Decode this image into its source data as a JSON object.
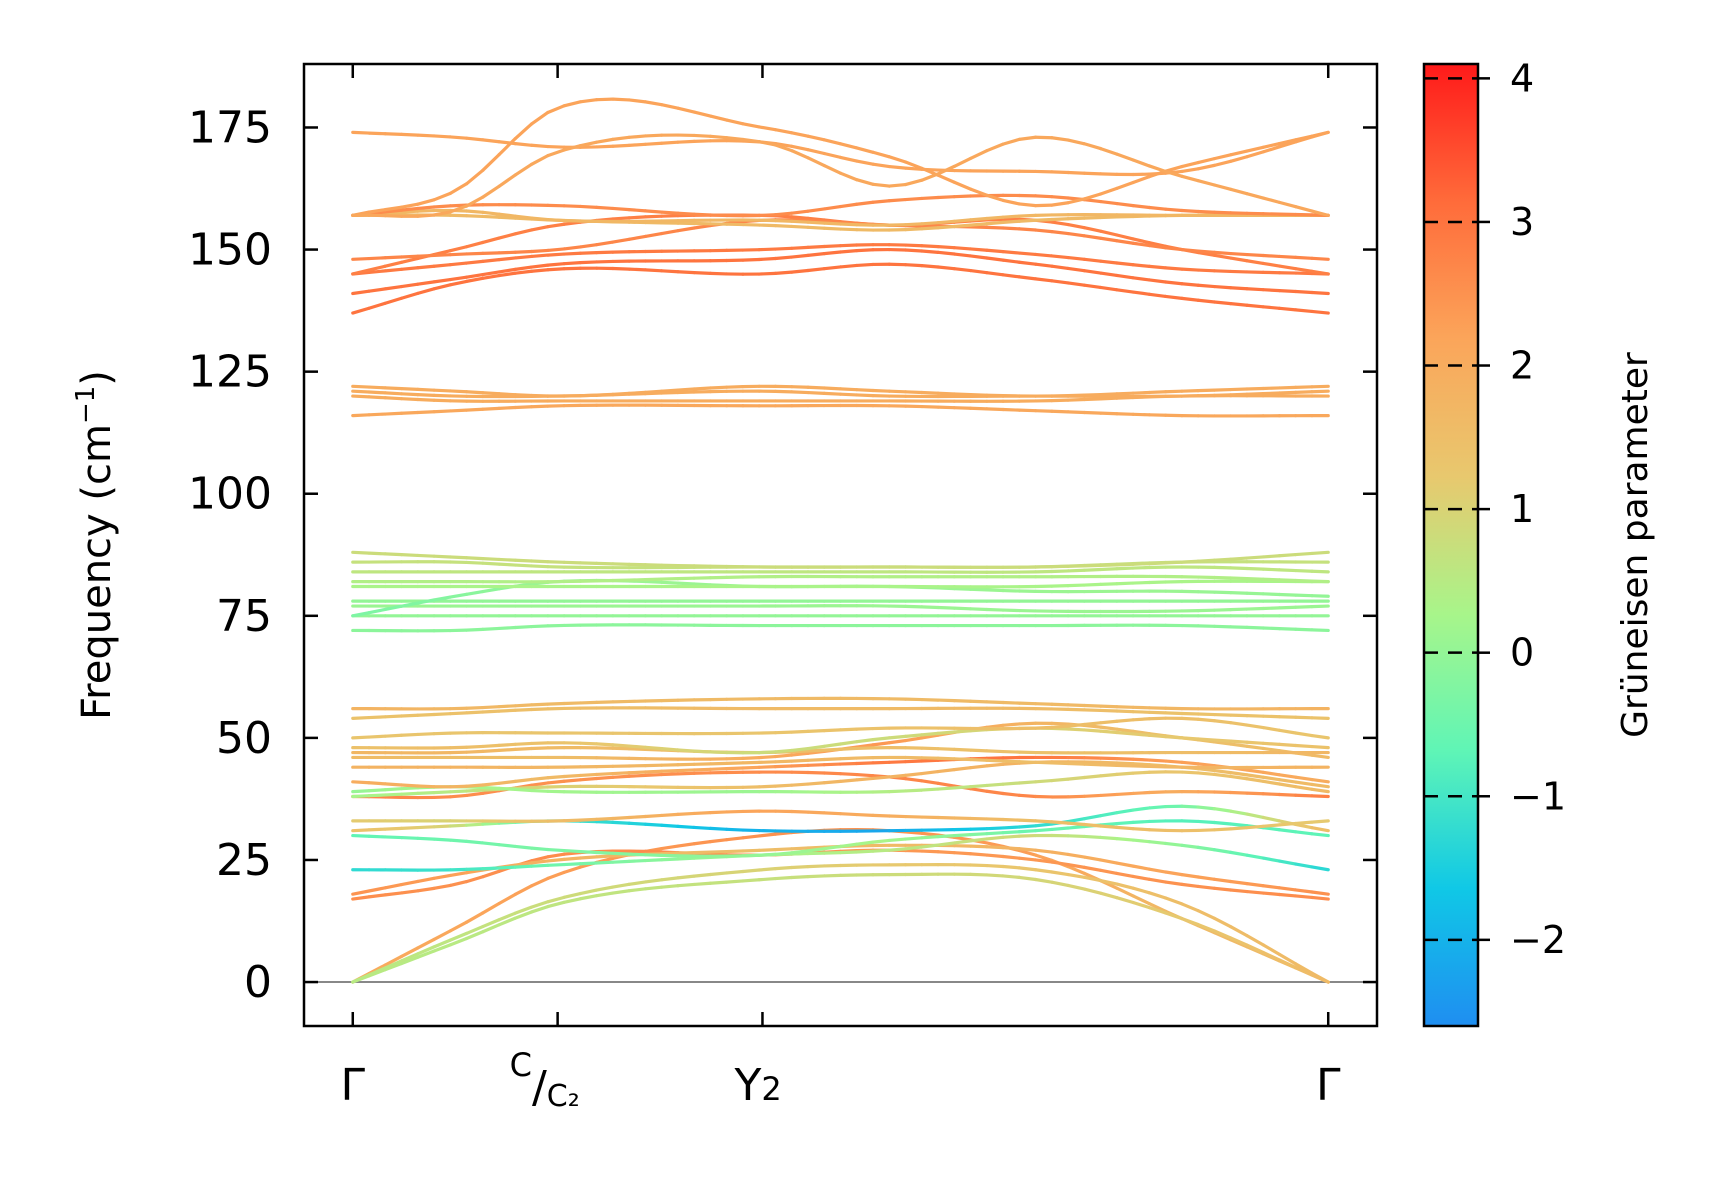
{
  "chart_data": {
    "type": "line",
    "title": "",
    "ylabel": "Frequency (cm",
    "ylabel_sup": "−1",
    "ylabel_close": ")",
    "ylim": [
      -9,
      188
    ],
    "yticks": [
      0,
      25,
      50,
      75,
      100,
      125,
      150,
      175
    ],
    "ytick_labels": [
      "0",
      "25",
      "50",
      "75",
      "100",
      "125",
      "150",
      "175"
    ],
    "x_range": [
      -0.1,
      2.1
    ],
    "kpoints": [
      {
        "x": 0.0,
        "main": "Γ",
        "sup": "",
        "slash": "",
        "sub": ""
      },
      {
        "x": 0.42,
        "main": "",
        "sup": "C",
        "slash": "/",
        "sub": "C₂"
      },
      {
        "x": 0.84,
        "main": "Y",
        "sup": "",
        "slash": "",
        "sub": "2"
      },
      {
        "x": 2.0,
        "main": "Γ",
        "sup": "",
        "slash": "",
        "sub": ""
      }
    ],
    "colorbar": {
      "label": "Grüneisen parameter",
      "range": [
        -2.6,
        4.1
      ],
      "ticks": [
        -2,
        -1,
        0,
        1,
        2,
        3,
        4
      ],
      "tick_labels": [
        "−2",
        "−1",
        "0",
        "1",
        "2",
        "3",
        "4"
      ],
      "colors": [
        "#1f8ef1",
        "#10c8e6",
        "#5ff5b6",
        "#a8f58a",
        "#e8c86e",
        "#fba55a",
        "#ff6b3a",
        "#ff1a1a"
      ]
    },
    "x_samples": [
      0.0,
      0.21,
      0.42,
      0.84,
      1.1,
      1.4,
      1.7,
      2.0
    ],
    "bands": [
      {
        "y": [
          0,
          11,
          22,
          30,
          31,
          26,
          13,
          0
        ],
        "g": [
          2.0,
          2.1,
          2.3,
          2.5,
          2.5,
          2.3,
          1.6,
          1.6
        ]
      },
      {
        "y": [
          0,
          8,
          16,
          21,
          22,
          21,
          13,
          0
        ],
        "g": [
          0.5,
          0.5,
          0.6,
          0.7,
          0.8,
          0.9,
          1.2,
          1.6
        ]
      },
      {
        "y": [
          0,
          9,
          17,
          23,
          24,
          23,
          16,
          0
        ],
        "g": [
          0.5,
          0.6,
          0.8,
          1.0,
          1.2,
          1.3,
          1.5,
          1.6
        ]
      },
      {
        "y": [
          17,
          20,
          26,
          26,
          27,
          25,
          20,
          17
        ],
        "g": [
          2.6,
          2.5,
          2.6,
          2.6,
          2.4,
          2.4,
          2.5,
          2.6
        ]
      },
      {
        "y": [
          18,
          22,
          25,
          27,
          28,
          27,
          22,
          18
        ],
        "g": [
          2.5,
          2.3,
          1.8,
          1.5,
          1.6,
          1.8,
          2.2,
          2.5
        ]
      },
      {
        "y": [
          23,
          23,
          24,
          26,
          27,
          30,
          28,
          23
        ],
        "g": [
          -1.3,
          -1.1,
          -0.5,
          0.2,
          0.5,
          0.9,
          0.0,
          -1.3
        ]
      },
      {
        "y": [
          30,
          29,
          27,
          26,
          29,
          31,
          33,
          30
        ],
        "g": [
          -0.7,
          -0.5,
          -0.3,
          0.0,
          0.3,
          -0.5,
          -0.8,
          -0.7
        ]
      },
      {
        "y": [
          31,
          32,
          33,
          31,
          31,
          32,
          36,
          31
        ],
        "g": [
          1.5,
          1.0,
          -1.0,
          -2.0,
          -2.2,
          -1.3,
          -0.5,
          1.5
        ]
      },
      {
        "y": [
          33,
          33,
          33,
          35,
          34,
          33,
          31,
          33
        ],
        "g": [
          1.2,
          1.0,
          1.5,
          2.2,
          2.0,
          1.5,
          1.5,
          1.2
        ]
      },
      {
        "y": [
          38,
          38,
          41,
          43,
          42,
          38,
          39,
          38
        ],
        "g": [
          2.8,
          2.6,
          2.5,
          2.6,
          2.7,
          2.7,
          2.0,
          2.8
        ]
      },
      {
        "y": [
          38,
          39,
          40,
          40,
          42,
          45,
          44,
          40
        ],
        "g": [
          0.2,
          0.5,
          1.0,
          1.5,
          1.8,
          1.8,
          1.5,
          1.6
        ]
      },
      {
        "y": [
          39,
          40,
          39,
          39,
          39,
          41,
          43,
          39
        ],
        "g": [
          0.0,
          0.3,
          0.2,
          0.1,
          0.4,
          0.8,
          1.3,
          1.6
        ]
      },
      {
        "y": [
          41,
          40,
          42,
          44,
          45,
          46,
          45,
          41
        ],
        "g": [
          2.0,
          1.8,
          1.6,
          2.2,
          2.9,
          3.0,
          2.3,
          2.0
        ]
      },
      {
        "y": [
          44,
          44,
          44,
          45,
          46,
          45,
          44,
          44
        ],
        "g": [
          1.8,
          1.8,
          1.7,
          1.7,
          1.6,
          1.5,
          1.7,
          1.8
        ]
      },
      {
        "y": [
          46,
          46,
          46,
          46,
          49,
          53,
          50,
          46
        ],
        "g": [
          1.6,
          1.5,
          1.5,
          2.0,
          2.4,
          1.8,
          1.4,
          1.6
        ]
      },
      {
        "y": [
          47,
          47,
          48,
          47,
          48,
          47,
          47,
          47
        ],
        "g": [
          1.7,
          1.7,
          1.6,
          1.5,
          1.5,
          1.4,
          1.5,
          1.7
        ]
      },
      {
        "y": [
          48,
          48,
          49,
          47,
          50,
          52,
          50,
          48
        ],
        "g": [
          1.4,
          1.5,
          1.4,
          0.8,
          0.8,
          1.0,
          1.2,
          1.4
        ]
      },
      {
        "y": [
          50,
          51,
          51,
          51,
          52,
          52,
          54,
          50
        ],
        "g": [
          1.3,
          1.3,
          1.3,
          1.3,
          1.4,
          1.5,
          1.5,
          1.3
        ]
      },
      {
        "y": [
          54,
          55,
          56,
          56,
          56,
          56,
          55,
          54
        ],
        "g": [
          1.4,
          1.4,
          1.5,
          1.6,
          1.6,
          1.6,
          1.4,
          1.4
        ]
      },
      {
        "y": [
          56,
          56,
          57,
          58,
          58,
          57,
          56,
          56
        ],
        "g": [
          1.8,
          1.7,
          1.6,
          1.6,
          1.6,
          1.6,
          1.7,
          1.8
        ]
      },
      {
        "y": [
          72,
          72,
          73,
          73,
          73,
          73,
          73,
          72
        ],
        "g": [
          -0.1,
          -0.1,
          -0.1,
          -0.1,
          -0.1,
          -0.1,
          -0.1,
          -0.1
        ]
      },
      {
        "y": [
          75,
          75,
          75,
          75,
          75,
          75,
          75,
          75
        ],
        "g": [
          0.0,
          0.0,
          0.0,
          0.0,
          0.0,
          0.0,
          0.0,
          0.0
        ]
      },
      {
        "y": [
          77,
          77,
          77,
          77,
          77,
          76,
          76,
          77
        ],
        "g": [
          0.1,
          0.1,
          0.1,
          0.1,
          0.1,
          0.1,
          0.1,
          0.1
        ]
      },
      {
        "y": [
          78,
          78,
          78,
          78,
          78,
          78,
          78,
          78
        ],
        "g": [
          0.0,
          0.0,
          0.0,
          0.0,
          0.0,
          0.0,
          0.0,
          0.0
        ]
      },
      {
        "y": [
          75,
          79,
          82,
          81,
          81,
          80,
          80,
          79
        ],
        "g": [
          -0.3,
          -0.2,
          0.1,
          0.1,
          0.1,
          0.1,
          0.1,
          0.0
        ]
      },
      {
        "y": [
          81,
          81,
          81,
          81,
          81,
          81,
          82,
          82
        ],
        "g": [
          0.3,
          0.3,
          0.3,
          0.3,
          0.3,
          0.3,
          0.3,
          0.3
        ]
      },
      {
        "y": [
          82,
          82,
          82,
          83,
          83,
          83,
          83,
          82
        ],
        "g": [
          0.4,
          0.4,
          0.4,
          0.4,
          0.4,
          0.4,
          0.4,
          0.4
        ]
      },
      {
        "y": [
          84,
          84,
          84,
          84,
          84,
          84,
          85,
          84
        ],
        "g": [
          0.6,
          0.6,
          0.6,
          0.6,
          0.6,
          0.6,
          0.6,
          0.6
        ]
      },
      {
        "y": [
          86,
          86,
          85,
          85,
          85,
          85,
          86,
          86
        ],
        "g": [
          0.7,
          0.7,
          0.7,
          0.7,
          0.7,
          0.7,
          0.7,
          0.7
        ]
      },
      {
        "y": [
          88,
          87,
          86,
          85,
          85,
          85,
          86,
          88
        ],
        "g": [
          0.8,
          0.8,
          0.8,
          0.8,
          0.8,
          0.8,
          0.8,
          0.8
        ]
      },
      {
        "y": [
          116,
          117,
          118,
          118,
          118,
          117,
          116,
          116
        ],
        "g": [
          2.1,
          2.1,
          2.1,
          2.1,
          2.1,
          2.1,
          2.1,
          2.1
        ]
      },
      {
        "y": [
          120,
          119,
          119,
          119,
          119,
          119,
          120,
          120
        ],
        "g": [
          2.0,
          2.0,
          2.0,
          2.0,
          2.0,
          2.0,
          2.0,
          2.0
        ]
      },
      {
        "y": [
          121,
          120,
          120,
          121,
          120,
          120,
          120,
          121
        ],
        "g": [
          2.0,
          2.0,
          2.0,
          2.0,
          2.0,
          2.0,
          2.0,
          2.0
        ]
      },
      {
        "y": [
          122,
          121,
          120,
          122,
          121,
          120,
          121,
          122
        ],
        "g": [
          2.0,
          2.0,
          2.0,
          2.0,
          2.0,
          2.0,
          2.0,
          2.0
        ]
      },
      {
        "y": [
          137,
          143,
          146,
          145,
          147,
          144,
          140,
          137
        ],
        "g": [
          3.0,
          3.0,
          3.0,
          3.0,
          3.0,
          3.0,
          3.0,
          3.0
        ]
      },
      {
        "y": [
          141,
          144,
          147,
          148,
          150,
          147,
          143,
          141
        ],
        "g": [
          3.0,
          3.0,
          3.0,
          3.0,
          3.0,
          3.0,
          3.0,
          3.0
        ]
      },
      {
        "y": [
          145,
          147,
          149,
          150,
          151,
          149,
          146,
          145
        ],
        "g": [
          2.9,
          2.9,
          2.9,
          2.9,
          2.9,
          2.9,
          2.9,
          2.9
        ]
      },
      {
        "y": [
          145,
          150,
          155,
          157,
          155,
          156,
          150,
          145
        ],
        "g": [
          2.8,
          2.8,
          2.8,
          2.8,
          2.8,
          2.8,
          2.8,
          2.8
        ]
      },
      {
        "y": [
          148,
          149,
          150,
          156,
          155,
          154,
          150,
          148
        ],
        "g": [
          2.7,
          2.7,
          2.7,
          2.7,
          2.7,
          2.7,
          2.7,
          2.7
        ]
      },
      {
        "y": [
          157,
          157,
          156,
          155,
          154,
          156,
          157,
          157
        ],
        "g": [
          1.6,
          1.6,
          1.6,
          1.6,
          1.6,
          1.6,
          1.6,
          1.6
        ]
      },
      {
        "y": [
          157,
          158,
          156,
          156,
          155,
          157,
          157,
          157
        ],
        "g": [
          1.7,
          1.7,
          1.7,
          1.7,
          1.7,
          1.7,
          1.7,
          1.7
        ]
      },
      {
        "y": [
          157,
          159,
          159,
          157,
          160,
          161,
          158,
          157
        ],
        "g": [
          2.6,
          2.6,
          2.6,
          2.6,
          2.6,
          2.6,
          2.6,
          2.6
        ]
      },
      {
        "y": [
          174,
          173,
          171,
          172,
          167,
          166,
          166,
          174
        ],
        "g": [
          2.2,
          2.2,
          2.2,
          2.2,
          2.2,
          2.2,
          2.2,
          2.2
        ]
      },
      {
        "y": [
          157,
          162,
          179,
          175,
          169,
          159,
          167,
          174
        ],
        "g": [
          2.2,
          2.2,
          2.2,
          2.2,
          2.2,
          2.2,
          2.2,
          2.2
        ]
      },
      {
        "y": [
          157,
          158,
          170,
          172,
          163,
          173,
          165,
          157
        ],
        "g": [
          2.1,
          2.1,
          2.1,
          2.1,
          2.1,
          2.1,
          2.1,
          2.1
        ]
      }
    ]
  }
}
